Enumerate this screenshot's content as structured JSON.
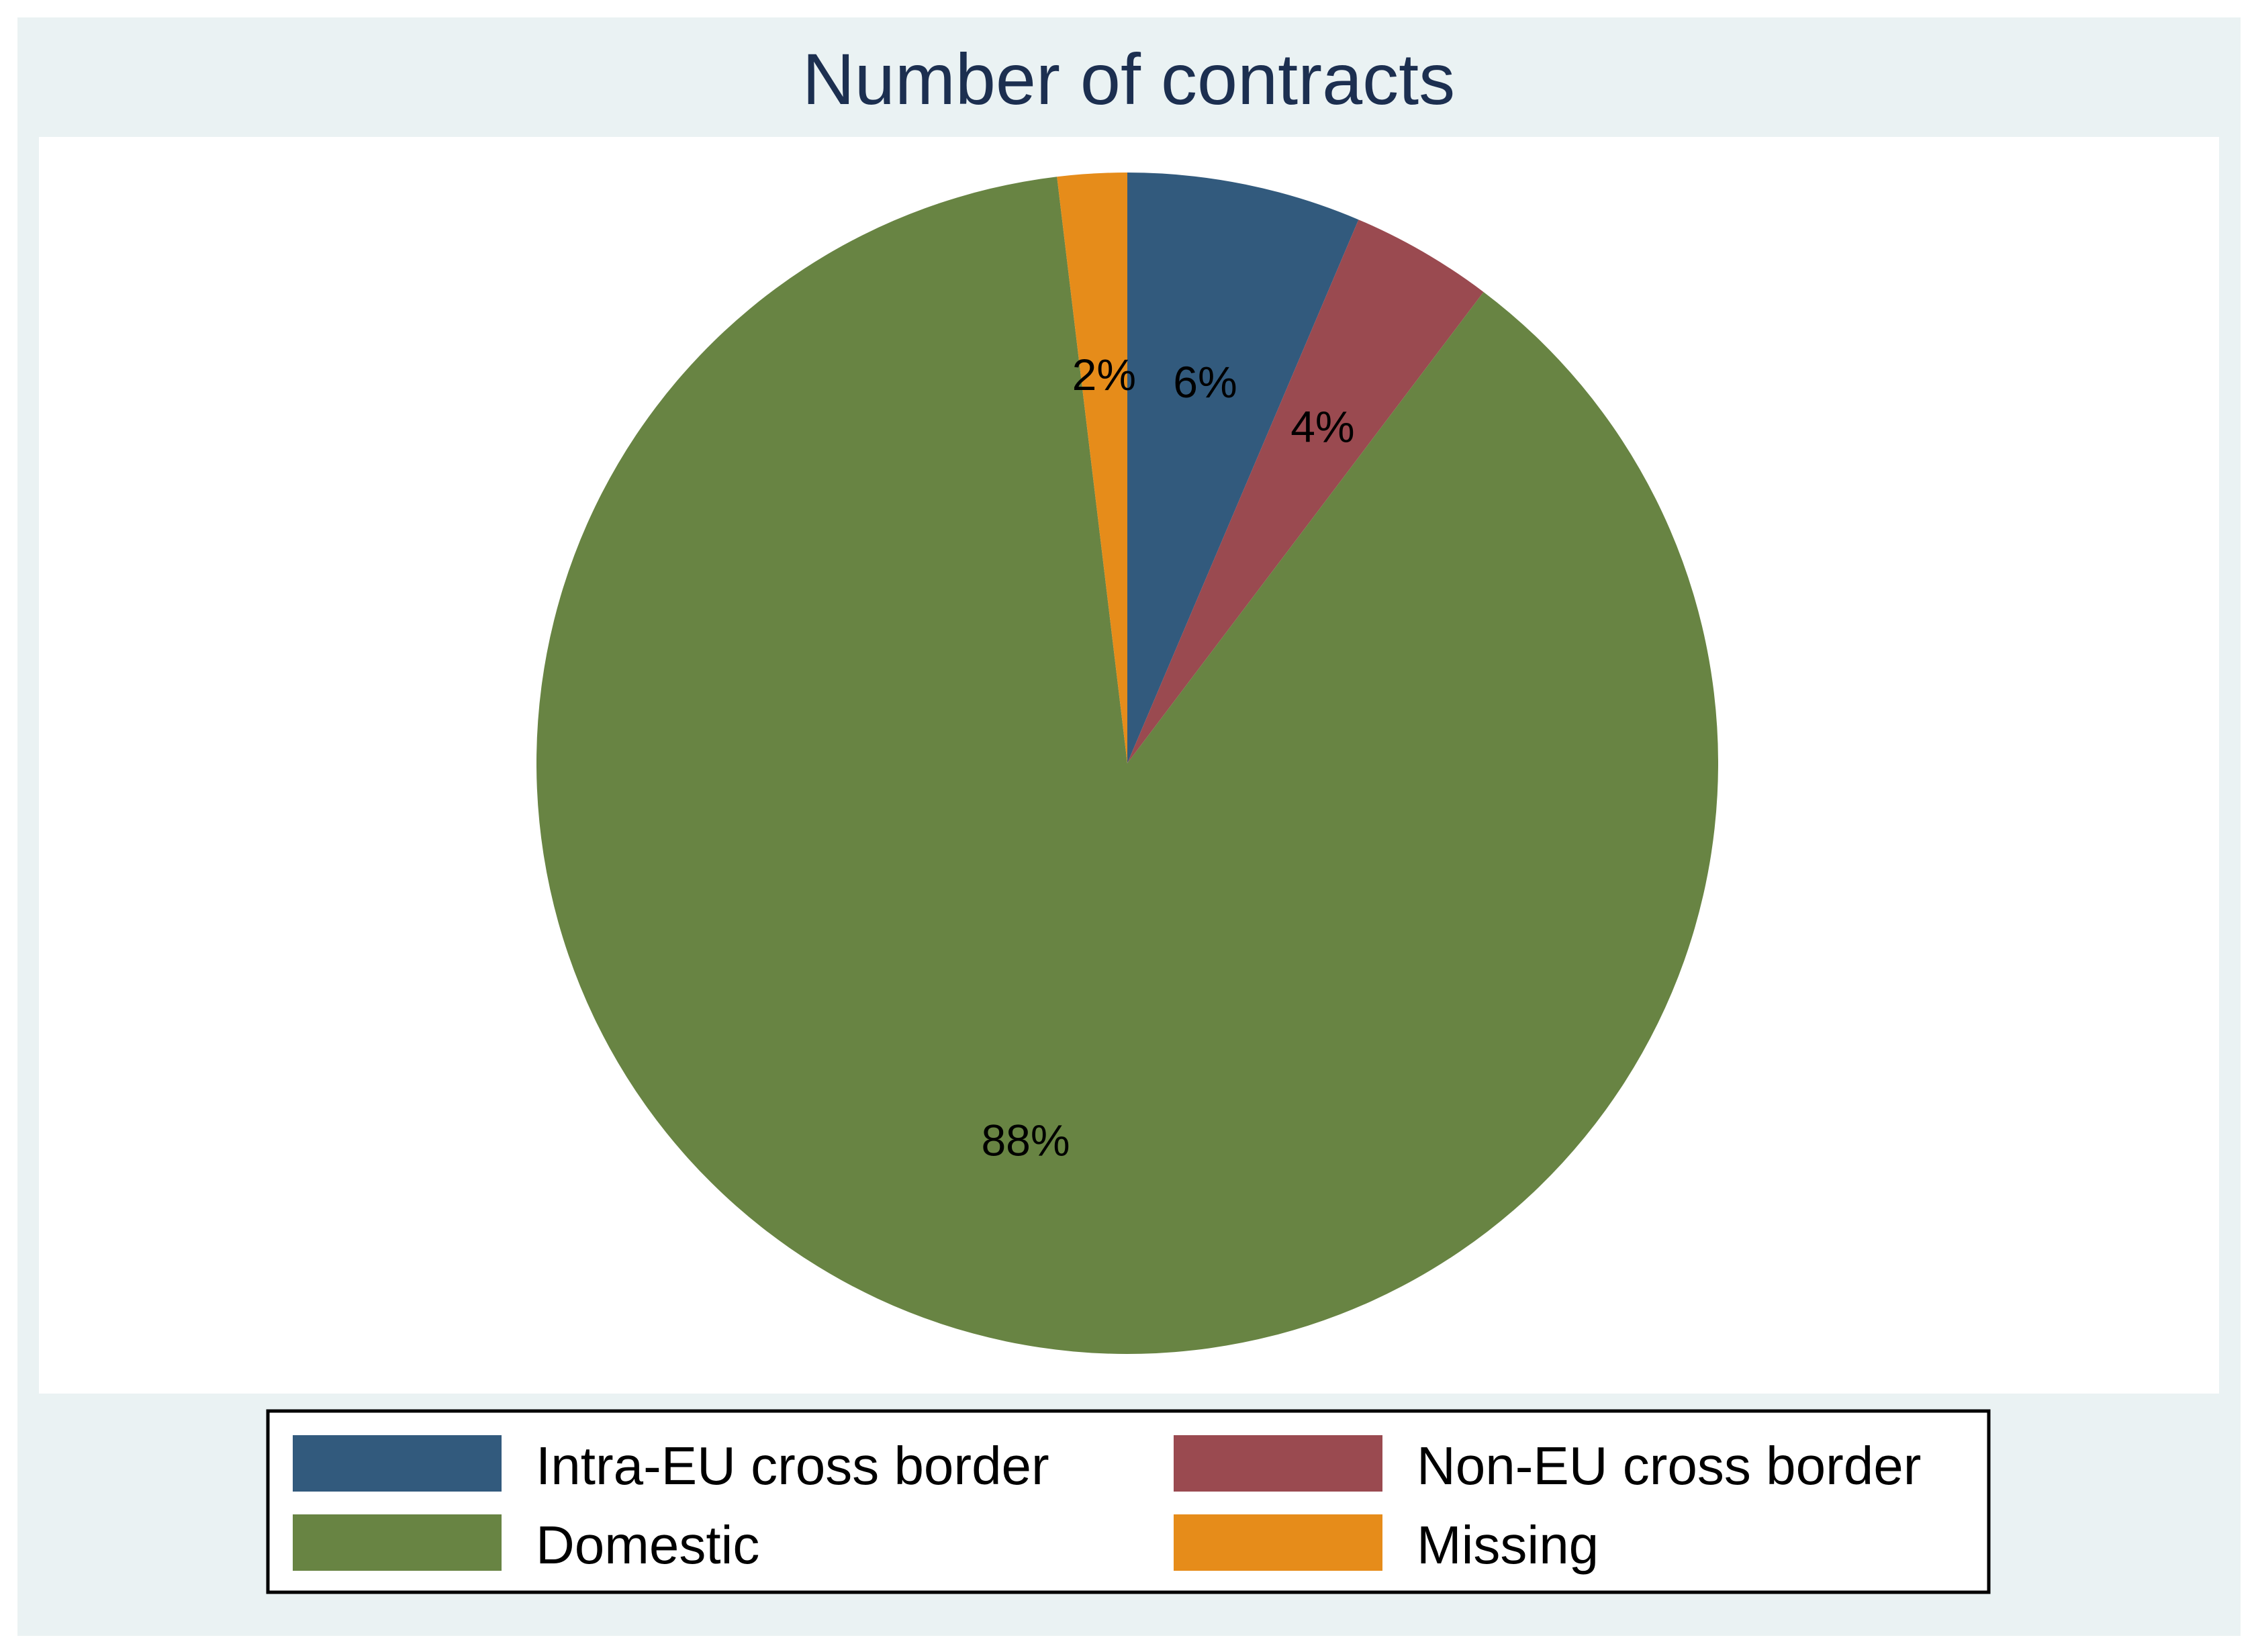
{
  "chart_data": {
    "type": "pie",
    "title": "Number of contracts",
    "start": "12 o'clock, clockwise",
    "slices": [
      {
        "name": "Intra-EU cross border",
        "value": 6.4,
        "label": "6%",
        "color": "#325a7d"
      },
      {
        "name": "Non-EU cross border",
        "value": 3.9,
        "label": "4%",
        "color": "#9a4a50"
      },
      {
        "name": "Domestic",
        "value": 87.8,
        "label": "88%",
        "color": "#688443"
      },
      {
        "name": "Missing",
        "value": 1.9,
        "label": "2%",
        "color": "#e68c1a"
      }
    ],
    "legend": {
      "placement": "bottom",
      "columns": 2,
      "order": [
        "Intra-EU cross border",
        "Non-EU cross border",
        "Domestic",
        "Missing"
      ]
    }
  },
  "colors": {
    "background": "#eaf2f3",
    "plot": "#ffffff",
    "title": "#1c2f50"
  }
}
